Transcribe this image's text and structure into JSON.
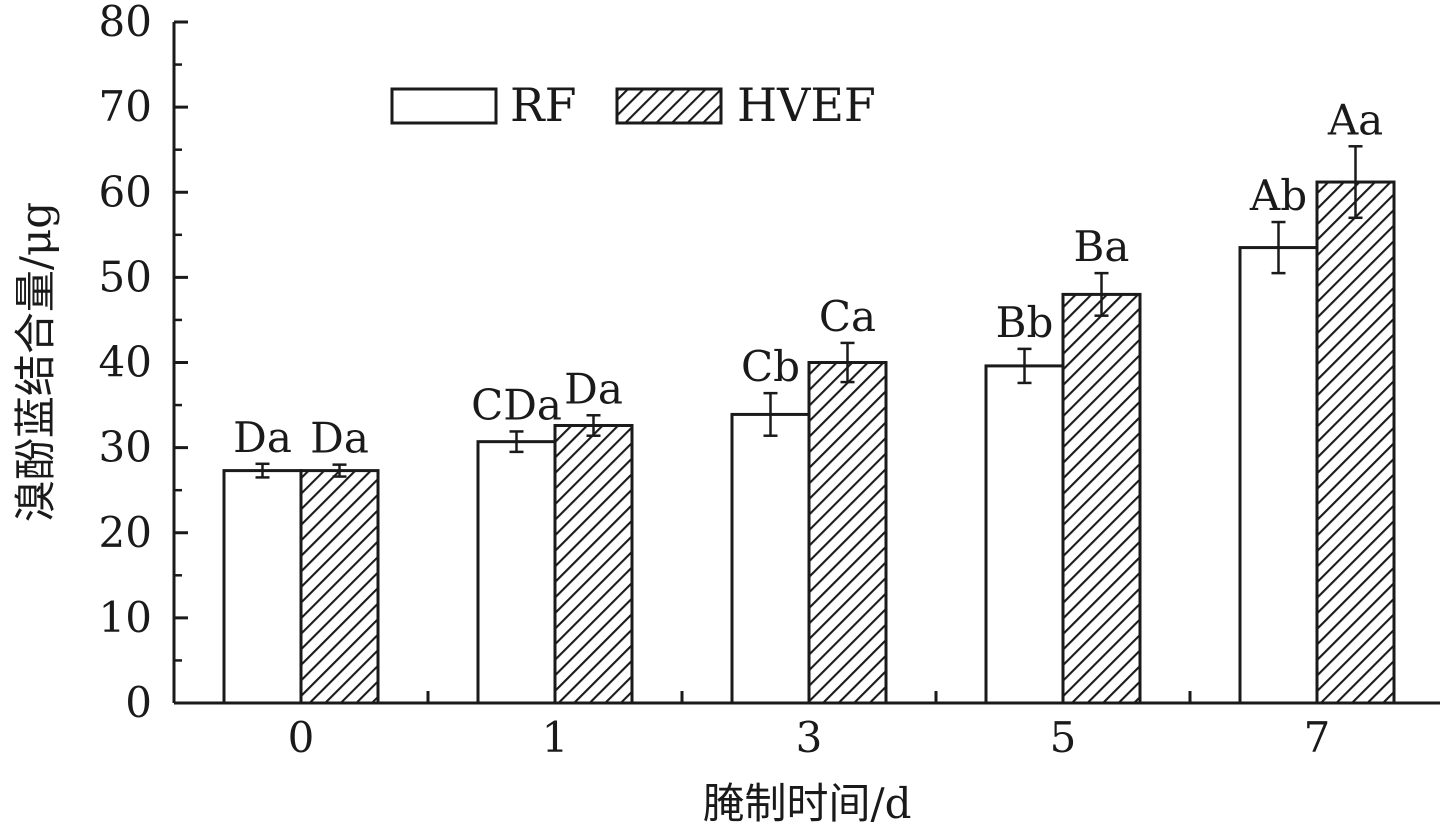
{
  "chart_data": {
    "type": "bar",
    "title": "",
    "xlabel": "腌制时间/d",
    "ylabel": "溴酚蓝结合量/μg",
    "categories": [
      "0",
      "1",
      "3",
      "5",
      "7"
    ],
    "ylim": [
      0,
      80
    ],
    "yticks": [
      0,
      10,
      20,
      30,
      40,
      50,
      60,
      70,
      80
    ],
    "grid": false,
    "legend_position": "top-left",
    "series": [
      {
        "name": "RF",
        "fill": "white",
        "values": [
          27.3,
          30.7,
          33.9,
          39.6,
          53.5
        ],
        "errors": [
          0.8,
          1.2,
          2.5,
          2.0,
          3.0
        ],
        "labels": [
          "Da",
          "CDa",
          "Cb",
          "Bb",
          "Ab"
        ]
      },
      {
        "name": "HVEF",
        "fill": "hatched",
        "values": [
          27.3,
          32.6,
          40.0,
          48.0,
          61.2
        ],
        "errors": [
          0.7,
          1.2,
          2.3,
          2.5,
          4.2
        ],
        "labels": [
          "Da",
          "Da",
          "Ca",
          "Ba",
          "Aa"
        ]
      }
    ],
    "colors": {
      "stroke": "#1a1a1a",
      "background": "#ffffff"
    }
  }
}
